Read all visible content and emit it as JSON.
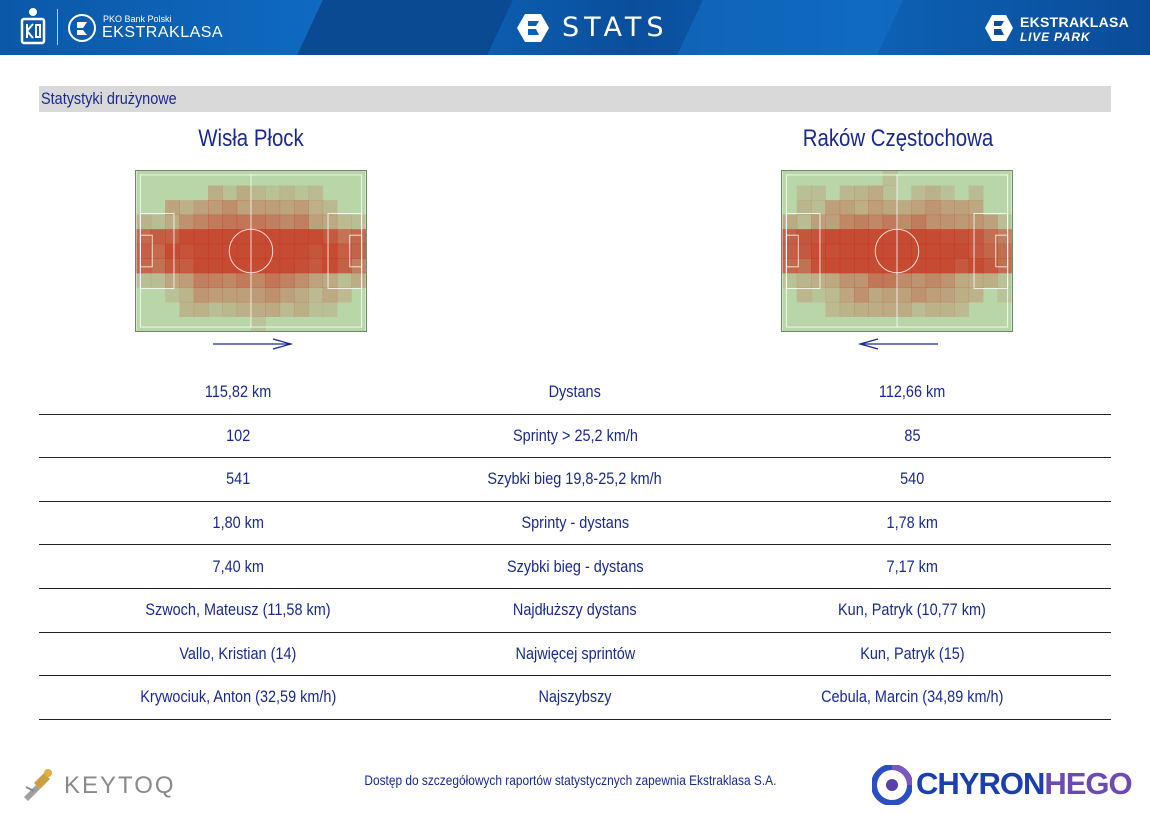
{
  "header": {
    "pko_small": "PKO Bank Polski",
    "ekstraklasa": "EKSTRAKLASA",
    "stats_title": "STATS",
    "live_park_line1": "EKSTRAKLASA",
    "live_park_line2": "LIVE PARK"
  },
  "section_title": "Statystyki drużynowe",
  "teams": {
    "home": {
      "name": "Wisła Płock",
      "direction": "right"
    },
    "away": {
      "name": "Raków Częstochowa",
      "direction": "left"
    }
  },
  "stats_rows": [
    {
      "home": "115,82 km",
      "label": "Dystans",
      "away": "112,66 km"
    },
    {
      "home": "102",
      "label": "Sprinty > 25,2 km/h",
      "away": "85"
    },
    {
      "home": "541",
      "label": "Szybki bieg 19,8-25,2 km/h",
      "away": "540"
    },
    {
      "home": "1,80 km",
      "label": "Sprinty - dystans",
      "away": "1,78 km"
    },
    {
      "home": "7,40 km",
      "label": "Szybki bieg - dystans",
      "away": "7,17 km"
    },
    {
      "home": "Szwoch, Mateusz (11,58 km)",
      "label": "Najdłuższy dystans",
      "away": "Kun, Patryk (10,77 km)"
    },
    {
      "home": "Vallo, Kristian (14)",
      "label": "Najwięcej sprintów",
      "away": "Kun, Patryk (15)"
    },
    {
      "home": "Krywociuk, Anton (32,59 km/h)",
      "label": "Najszybszy",
      "away": "Cebula, Marcin (34,89 km/h)"
    }
  ],
  "footer": {
    "keytoq": "KEYTOQ",
    "note": "Dostęp do szczegółowych raportów statystycznych zapewnia Ekstraklasa S.A.",
    "chyron_a": "CHYRON",
    "chyron_b": "HEGO"
  },
  "colors": {
    "header_blue": "#0d62b6",
    "text_navy": "#1a2a8c",
    "section_gray": "#d9d9d9",
    "heat_hot": "#c8321e",
    "pitch_green": "#b8d6a8"
  }
}
